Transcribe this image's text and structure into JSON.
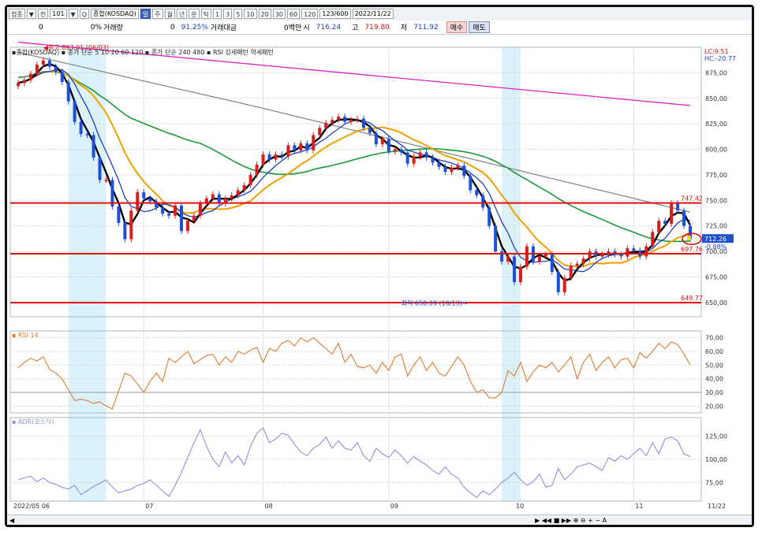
{
  "toolbar": {
    "items": [
      "업종",
      "▼",
      "전",
      "101",
      "▼",
      "Q",
      "종합(KOSDAQ)",
      "일",
      "주",
      "월",
      "년",
      "분",
      "틱",
      "1",
      "3",
      "5",
      "10",
      "20",
      "30",
      "60",
      "120",
      "123/600",
      "2022/11/22"
    ],
    "active_index": 7
  },
  "quote": {
    "v0": "0",
    "v1": "0%",
    "vol_label": "거래량",
    "v2": "0",
    "chg": "91.25%",
    "amt_label": "거래대금",
    "amt": "0백만",
    "open_label": "시",
    "open": "716.24",
    "high_label": "고",
    "high": "719.80",
    "low_label": "저",
    "low": "711.92",
    "buy": "매수",
    "sell": "매도"
  },
  "legend": {
    "main": "종합(KOSDAQ)",
    "ma_label": "종가 단순",
    "ma_periods": [
      "5",
      "10",
      "20",
      "60",
      "120"
    ],
    "ma2_label": "종가 단순",
    "ma2_periods": [
      "240",
      "480"
    ],
    "rsi_pattern": "RSI 강세패턴 약세패턴",
    "lc": "LC:9.51",
    "hc": "HC:-20.77"
  },
  "annotations": {
    "high": "최고 893.01 (06/03)",
    "low": "최저 650.39 (10/13)"
  },
  "price_tags": {
    "current": "712.26",
    "change": "-0.88%",
    "resist": "747.42",
    "support": "697.76",
    "floor": "649.77"
  },
  "rsi_label": "RSI 14",
  "adr_label": "ADR(코스닥)",
  "colors": {
    "up": "#d81e1e",
    "down": "#1e4fd8",
    "ma5": "#000000",
    "ma10": "#1d3fc7",
    "ma20": "#f0a000",
    "ma60": "#1a9a3a",
    "ma120": "#888888",
    "ma240": "#e020c0",
    "hline": "#e01010",
    "rsi": "#e07a30",
    "adr": "#8f8fe0",
    "band": "#cfeefa"
  },
  "chart_data": [
    {
      "type": "candlestick",
      "title": "종합(KOSDAQ)",
      "x_ticks": [
        "2022/05 06",
        "07",
        "08",
        "09",
        "10",
        "11",
        "11/22"
      ],
      "ylim": [
        636,
        900
      ],
      "y_ticks": [
        "875,00",
        "850,00",
        "825,00",
        "800,00",
        "775,00",
        "750,00",
        "725,00",
        "700,00",
        "675,00",
        "650,00"
      ],
      "closes": [
        865,
        868,
        874,
        883,
        887,
        881,
        876,
        866,
        847,
        827,
        815,
        814,
        792,
        770,
        770,
        744,
        728,
        712,
        740,
        758,
        752,
        749,
        743,
        737,
        735,
        745,
        720,
        730,
        735,
        747,
        752,
        756,
        747,
        752,
        755,
        760,
        765,
        775,
        785,
        795,
        790,
        795,
        793,
        804,
        799,
        806,
        799,
        814,
        821,
        826,
        829,
        832,
        827,
        829,
        830,
        821,
        816,
        805,
        810,
        798,
        800,
        797,
        786,
        793,
        797,
        792,
        787,
        783,
        778,
        782,
        784,
        774,
        760,
        755,
        743,
        725,
        700,
        690,
        695,
        670,
        685,
        705,
        690,
        695,
        697,
        680,
        660,
        674,
        686,
        688,
        693,
        700,
        695,
        697,
        700,
        697,
        695,
        703,
        701,
        695,
        705,
        719,
        730,
        727,
        747,
        740,
        725,
        712
      ],
      "hlines": [
        747.42,
        697.76,
        649.77
      ],
      "high_marker": 893.01,
      "low_marker": 650.39
    },
    {
      "type": "line",
      "title": "RSI 14",
      "ylim": [
        15,
        75
      ],
      "y_ticks": [
        "70,00",
        "60,00",
        "50,00",
        "40,00",
        "30,00",
        "20,00"
      ],
      "values": [
        48,
        52,
        55,
        53,
        56,
        47,
        44,
        40,
        32,
        24,
        25,
        24,
        22,
        23,
        20,
        18,
        31,
        44,
        42,
        36,
        30,
        38,
        44,
        38,
        55,
        52,
        56,
        60,
        51,
        54,
        57,
        58,
        50,
        56,
        52,
        60,
        58,
        61,
        63,
        52,
        62,
        60,
        66,
        68,
        64,
        70,
        67,
        70,
        66,
        62,
        58,
        66,
        52,
        58,
        49,
        48,
        50,
        44,
        52,
        46,
        56,
        58,
        42,
        50,
        56,
        46,
        52,
        44,
        42,
        49,
        56,
        50,
        38,
        30,
        32,
        26,
        26,
        30,
        46,
        42,
        52,
        38,
        45,
        50,
        48,
        52,
        45,
        50,
        56,
        40,
        52,
        58,
        46,
        52,
        56,
        48,
        54,
        55,
        48,
        59,
        55,
        60,
        66,
        62,
        67,
        65,
        58,
        50
      ]
    },
    {
      "type": "line",
      "title": "ADR(코스닥)",
      "ylim": [
        55,
        145
      ],
      "y_ticks": [
        "125,00",
        "100,00",
        "75,00"
      ],
      "values": [
        78,
        80,
        82,
        76,
        80,
        75,
        73,
        70,
        68,
        72,
        62,
        66,
        71,
        74,
        78,
        70,
        64,
        66,
        68,
        72,
        74,
        78,
        72,
        66,
        60,
        72,
        86,
        102,
        118,
        132,
        114,
        100,
        92,
        108,
        96,
        104,
        94,
        114,
        128,
        134,
        118,
        122,
        128,
        126,
        116,
        108,
        104,
        112,
        116,
        124,
        112,
        120,
        112,
        110,
        118,
        104,
        98,
        112,
        106,
        102,
        110,
        104,
        96,
        103,
        98,
        94,
        88,
        84,
        92,
        84,
        80,
        70,
        64,
        59,
        66,
        62,
        68,
        75,
        80,
        86,
        78,
        72,
        76,
        84,
        70,
        72,
        90,
        78,
        84,
        92,
        94,
        96,
        92,
        88,
        102,
        98,
        104,
        100,
        106,
        112,
        104,
        118,
        106,
        122,
        124,
        120,
        106,
        103
      ]
    }
  ]
}
